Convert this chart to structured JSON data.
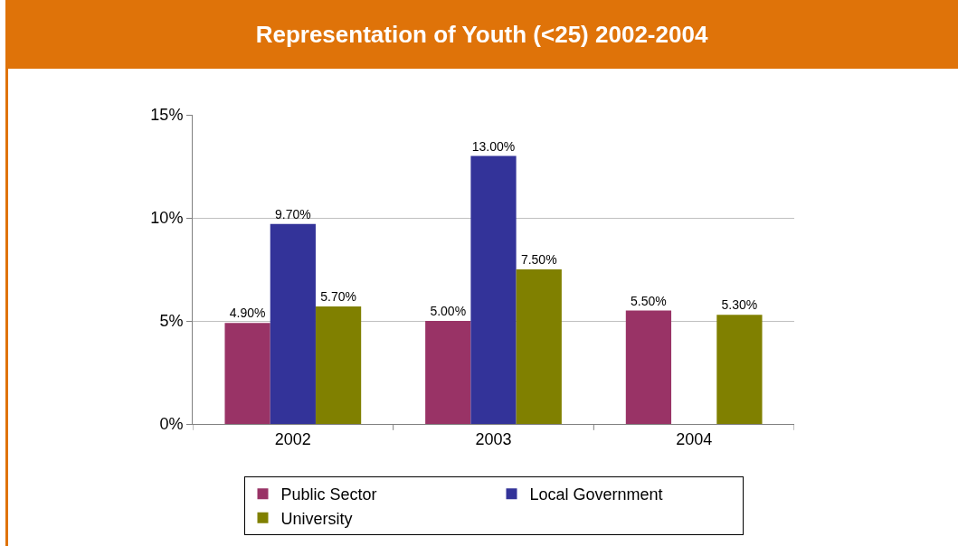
{
  "chart_data": {
    "type": "bar",
    "title": "Representation of Youth (<25) 2002-2004",
    "categories": [
      "2002",
      "2003",
      "2004"
    ],
    "series": [
      {
        "name": "Public Sector",
        "color": "#993366",
        "values": [
          4.9,
          5.0,
          5.5
        ],
        "value_labels": [
          "4.90%",
          "5.00%",
          "5.50%"
        ]
      },
      {
        "name": "Local Government",
        "color": "#333399",
        "values": [
          9.7,
          13.0,
          null
        ],
        "value_labels": [
          "9.70%",
          "13.00%",
          null
        ]
      },
      {
        "name": "University",
        "color": "#808000",
        "values": [
          5.7,
          7.5,
          5.3
        ],
        "value_labels": [
          "5.70%",
          "7.50%",
          "5.30%"
        ]
      }
    ],
    "ylim": [
      0,
      15
    ],
    "yticks": [
      {
        "value": 0,
        "label": "0%"
      },
      {
        "value": 5,
        "label": "5%"
      },
      {
        "value": 10,
        "label": "10%"
      },
      {
        "value": 15,
        "label": "15%"
      }
    ],
    "grid": "y",
    "legend": "bottom"
  }
}
